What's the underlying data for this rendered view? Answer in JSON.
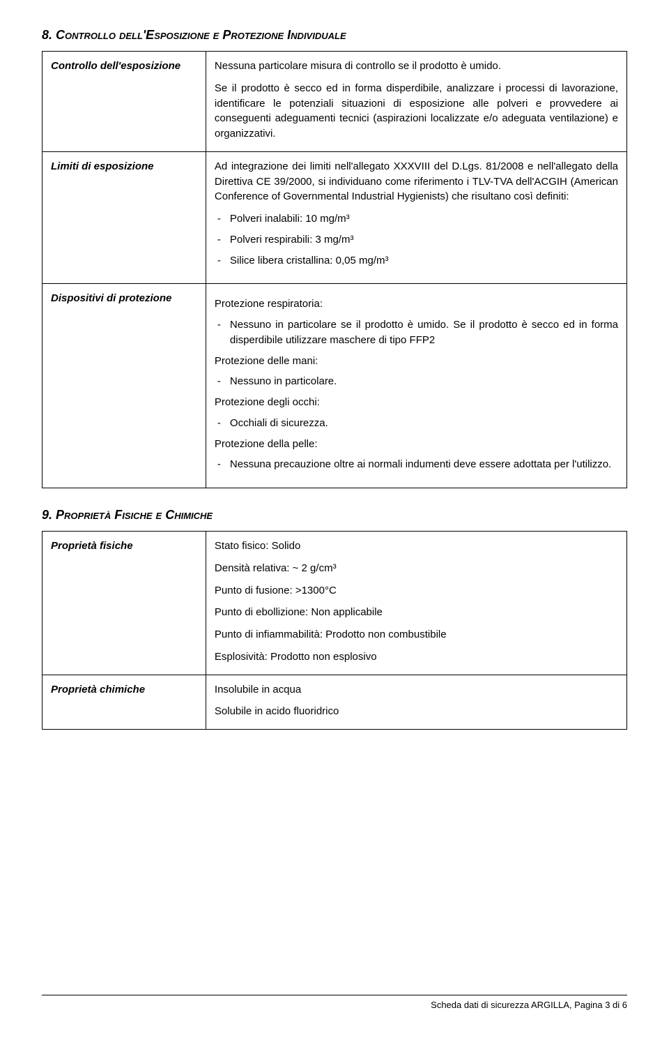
{
  "section8": {
    "heading_num": "8.",
    "heading_text": "Controllo dell'Esposizione e Protezione Individuale",
    "rows": [
      {
        "label": "Controllo dell'esposizione",
        "paras": [
          "Nessuna particolare misura di controllo se il prodotto è umido.",
          "Se il prodotto è secco ed in forma disperdibile, analizzare i processi di lavorazione, identificare le potenziali situazioni di esposizione alle polveri e provvedere ai conseguenti adeguamenti tecnici (aspirazioni localizzate e/o adeguata ventilazione) e organizzativi."
        ]
      },
      {
        "label": "Limiti di esposizione",
        "intro": "Ad integrazione dei limiti nell'allegato XXXVIII del D.Lgs. 81/2008 e nell'allegato della Direttiva CE 39/2000, si individuano come riferimento i TLV-TVA dell'ACGIH (American Conference of Governmental Industrial Hygienists) che risultano così definiti:",
        "bullets": [
          "Polveri inalabili: 10 mg/m³",
          "Polveri respirabili: 3 mg/m³",
          "Silice libera cristallina: 0,05 mg/m³"
        ]
      },
      {
        "label": "Dispositivi di protezione",
        "groups": [
          {
            "title": "Protezione respiratoria:",
            "items": [
              "Nessuno in particolare se il prodotto è umido. Se il prodotto è secco ed in forma disperdibile utilizzare maschere di tipo FFP2"
            ]
          },
          {
            "title": "Protezione delle mani:",
            "items": [
              "Nessuno in particolare."
            ]
          },
          {
            "title": "Protezione degli occhi:",
            "items": [
              "Occhiali di sicurezza."
            ]
          },
          {
            "title": "Protezione della pelle:",
            "items": [
              "Nessuna precauzione oltre ai normali indumenti deve essere adottata per l'utilizzo."
            ]
          }
        ]
      }
    ]
  },
  "section9": {
    "heading_num": "9.",
    "heading_text": "Proprietà Fisiche e Chimiche",
    "rows": [
      {
        "label": "Proprietà fisiche",
        "lines": [
          "Stato fisico: Solido",
          "Densità relativa: ~ 2 g/cm³",
          "Punto di fusione: >1300°C",
          "Punto di ebollizione: Non applicabile",
          "Punto di infiammabilità: Prodotto non combustibile",
          "Esplosività: Prodotto non esplosivo"
        ]
      },
      {
        "label": "Proprietà chimiche",
        "lines": [
          "Insolubile in acqua",
          "Solubile in acido fluoridrico"
        ]
      }
    ]
  },
  "footer": {
    "text": "Scheda dati di sicurezza ARGILLA,  Pagina 3 di 6"
  }
}
